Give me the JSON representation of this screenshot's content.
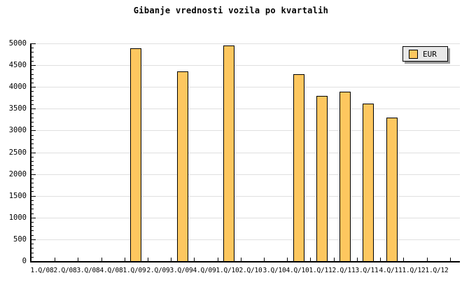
{
  "chart_data": {
    "type": "bar",
    "title": "Gibanje vrednosti vozila po kvartalih",
    "categories": [
      "1.Q/08",
      "2.Q/08",
      "3.Q/08",
      "4.Q/08",
      "1.Q/09",
      "2.Q/09",
      "3.Q/09",
      "4.Q/09",
      "1.Q/10",
      "2.Q/10",
      "3.Q/10",
      "4.Q/10",
      "1.Q/11",
      "2.Q/11",
      "3.Q/11",
      "4.Q/11",
      "1.Q/12",
      "1.Q/12"
    ],
    "series": [
      {
        "name": "EUR",
        "values": [
          null,
          null,
          null,
          null,
          4890,
          null,
          4360,
          null,
          4950,
          null,
          null,
          4290,
          3800,
          3890,
          3620,
          3290,
          null,
          null
        ]
      }
    ],
    "xlabel": "",
    "ylabel": "",
    "ylim": [
      0,
      5000
    ],
    "y_major_step": 500,
    "y_minor_step": 100,
    "y_tick_labels": [
      "0",
      "500",
      "1000",
      "1500",
      "2000",
      "2500",
      "3000",
      "3500",
      "4000",
      "4500",
      "5000"
    ],
    "grid": true,
    "legend_position": "top-right",
    "colors": {
      "bar_fill": "#FDC75F",
      "bar_border": "#000000",
      "gridline": "#E0E0E0",
      "axis": "#000000",
      "legend_bg": "#E8E8E8",
      "legend_shadow": "#9A9A9A",
      "background": "#FFFFFF",
      "text": "#000000"
    }
  }
}
